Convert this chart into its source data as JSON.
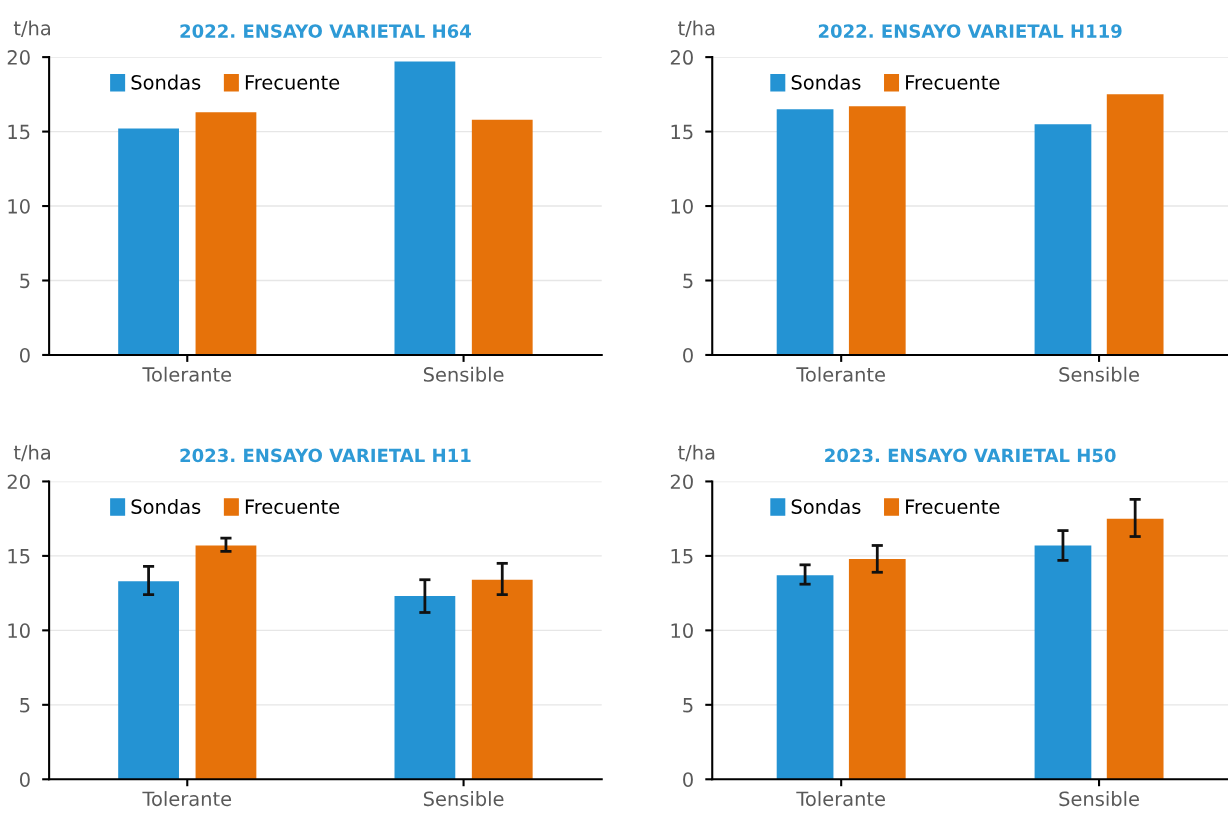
{
  "chart_data": [
    {
      "type": "bar",
      "title": "2022. ENSAYO VARIETAL H64",
      "ylabel": "t/ha",
      "categories": [
        "Tolerante",
        "Sensible"
      ],
      "ylim": [
        0,
        20
      ],
      "yticks": [
        0,
        5,
        10,
        15,
        20
      ],
      "grid": "y",
      "legend": "top left",
      "series": [
        {
          "name": "Sondas",
          "color": "#2493d3",
          "values": [
            15.2,
            19.7
          ]
        },
        {
          "name": "Frecuente",
          "color": "#e6720a",
          "values": [
            16.3,
            15.8
          ]
        }
      ]
    },
    {
      "type": "bar",
      "title": "2022. ENSAYO VARIETAL H119",
      "ylabel": "t/ha",
      "categories": [
        "Tolerante",
        "Sensible"
      ],
      "ylim": [
        0,
        20
      ],
      "yticks": [
        0,
        5,
        10,
        15,
        20
      ],
      "grid": "y",
      "legend": "top left",
      "series": [
        {
          "name": "Sondas",
          "color": "#2493d3",
          "values": [
            16.5,
            15.5
          ]
        },
        {
          "name": "Frecuente",
          "color": "#e6720a",
          "values": [
            16.7,
            17.5
          ]
        }
      ]
    },
    {
      "type": "bar",
      "title": "2023. ENSAYO VARIETAL H11",
      "ylabel": "t/ha",
      "categories": [
        "Tolerante",
        "Sensible"
      ],
      "ylim": [
        0,
        20
      ],
      "yticks": [
        0,
        5,
        10,
        15,
        20
      ],
      "grid": "y",
      "legend": "top left",
      "series": [
        {
          "name": "Sondas",
          "color": "#2493d3",
          "values": [
            13.3,
            12.3
          ],
          "errors": [
            [
              12.4,
              14.3
            ],
            [
              11.2,
              13.4
            ]
          ]
        },
        {
          "name": "Frecuente",
          "color": "#e6720a",
          "values": [
            15.7,
            13.4
          ],
          "errors": [
            [
              15.3,
              16.2
            ],
            [
              12.4,
              14.5
            ]
          ]
        }
      ]
    },
    {
      "type": "bar",
      "title": "2023. ENSAYO VARIETAL H50",
      "ylabel": "t/ha",
      "categories": [
        "Tolerante",
        "Sensible"
      ],
      "ylim": [
        0,
        20
      ],
      "yticks": [
        0,
        5,
        10,
        15,
        20
      ],
      "grid": "y",
      "legend": "top left",
      "series": [
        {
          "name": "Sondas",
          "color": "#2493d3",
          "values": [
            13.7,
            15.7
          ],
          "errors": [
            [
              13.1,
              14.4
            ],
            [
              14.7,
              16.7
            ]
          ]
        },
        {
          "name": "Frecuente",
          "color": "#e6720a",
          "values": [
            14.8,
            17.5
          ],
          "errors": [
            [
              13.9,
              15.7
            ],
            [
              16.3,
              18.8
            ]
          ]
        }
      ]
    }
  ]
}
